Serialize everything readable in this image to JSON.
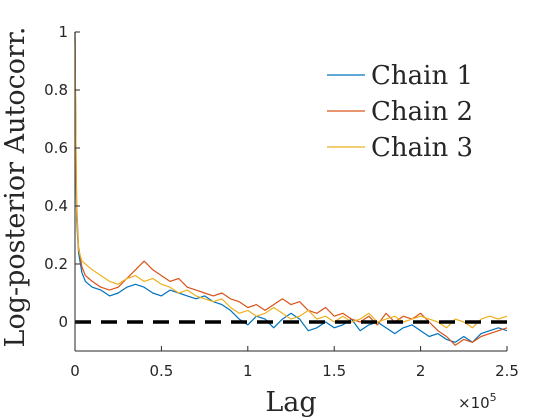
{
  "chart_data": {
    "type": "line",
    "xlabel": "Lag",
    "ylabel": "Log-posterior Autocorr.",
    "x_multiplier_label": "×10",
    "x_multiplier_exponent": "5",
    "xlim": [
      0,
      2.5
    ],
    "ylim": [
      -0.1,
      1.0
    ],
    "xticks": [
      0,
      0.5,
      1,
      1.5,
      2,
      2.5
    ],
    "xtick_labels": [
      "0",
      "0.5",
      "1",
      "1.5",
      "2",
      "2.5"
    ],
    "yticks": [
      0,
      0.2,
      0.4,
      0.6,
      0.8,
      1.0
    ],
    "ytick_labels": [
      "0",
      "0.2",
      "0.4",
      "0.6",
      "0.8",
      "1"
    ],
    "grid": false,
    "legend_position": "top-right",
    "reference_line": {
      "y": 0,
      "style": "dashed",
      "color": "#000000"
    },
    "series": [
      {
        "name": "Chain 1",
        "color": "#0072BD",
        "x": [
          0,
          0.005,
          0.01,
          0.02,
          0.04,
          0.06,
          0.08,
          0.1,
          0.15,
          0.2,
          0.25,
          0.3,
          0.35,
          0.4,
          0.45,
          0.5,
          0.55,
          0.6,
          0.65,
          0.7,
          0.75,
          0.8,
          0.85,
          0.9,
          0.95,
          1.0,
          1.05,
          1.1,
          1.15,
          1.2,
          1.25,
          1.3,
          1.35,
          1.4,
          1.45,
          1.5,
          1.55,
          1.6,
          1.65,
          1.7,
          1.75,
          1.8,
          1.85,
          1.9,
          1.95,
          2.0,
          2.05,
          2.1,
          2.15,
          2.2,
          2.25,
          2.3,
          2.35,
          2.4,
          2.45,
          2.5
        ],
        "values": [
          1.0,
          0.55,
          0.35,
          0.24,
          0.17,
          0.14,
          0.13,
          0.12,
          0.11,
          0.09,
          0.1,
          0.12,
          0.13,
          0.12,
          0.1,
          0.09,
          0.11,
          0.1,
          0.09,
          0.08,
          0.09,
          0.07,
          0.06,
          0.04,
          0.01,
          -0.01,
          0.02,
          0.01,
          -0.02,
          0.01,
          0.03,
          0.01,
          -0.03,
          -0.02,
          0.0,
          -0.02,
          -0.01,
          0.01,
          -0.03,
          -0.01,
          0.0,
          -0.02,
          -0.04,
          -0.02,
          -0.01,
          -0.03,
          -0.05,
          -0.04,
          -0.06,
          -0.07,
          -0.05,
          -0.07,
          -0.04,
          -0.03,
          -0.02,
          -0.03
        ]
      },
      {
        "name": "Chain 2",
        "color": "#D95319",
        "x": [
          0,
          0.005,
          0.01,
          0.02,
          0.04,
          0.06,
          0.08,
          0.1,
          0.15,
          0.2,
          0.25,
          0.3,
          0.35,
          0.4,
          0.45,
          0.5,
          0.55,
          0.6,
          0.65,
          0.7,
          0.75,
          0.8,
          0.85,
          0.9,
          0.95,
          1.0,
          1.05,
          1.1,
          1.15,
          1.2,
          1.25,
          1.3,
          1.35,
          1.4,
          1.45,
          1.5,
          1.55,
          1.6,
          1.65,
          1.7,
          1.75,
          1.8,
          1.85,
          1.9,
          1.95,
          2.0,
          2.05,
          2.1,
          2.15,
          2.2,
          2.25,
          2.3,
          2.35,
          2.4,
          2.45,
          2.5
        ],
        "values": [
          0.98,
          0.62,
          0.4,
          0.26,
          0.19,
          0.16,
          0.15,
          0.14,
          0.12,
          0.11,
          0.12,
          0.15,
          0.18,
          0.21,
          0.18,
          0.16,
          0.14,
          0.15,
          0.12,
          0.11,
          0.1,
          0.09,
          0.1,
          0.08,
          0.07,
          0.05,
          0.06,
          0.04,
          0.06,
          0.08,
          0.06,
          0.07,
          0.04,
          0.03,
          0.05,
          0.02,
          0.03,
          0.01,
          0.0,
          0.02,
          -0.01,
          0.03,
          0.0,
          0.02,
          0.01,
          0.03,
          0.0,
          -0.03,
          -0.05,
          -0.08,
          -0.06,
          -0.07,
          -0.05,
          -0.04,
          -0.03,
          -0.02
        ]
      },
      {
        "name": "Chain 3",
        "color": "#EDB120",
        "x": [
          0,
          0.005,
          0.01,
          0.02,
          0.04,
          0.06,
          0.08,
          0.1,
          0.15,
          0.2,
          0.25,
          0.3,
          0.35,
          0.4,
          0.45,
          0.5,
          0.55,
          0.6,
          0.65,
          0.7,
          0.75,
          0.8,
          0.85,
          0.9,
          0.95,
          1.0,
          1.05,
          1.1,
          1.15,
          1.2,
          1.25,
          1.3,
          1.35,
          1.4,
          1.45,
          1.5,
          1.55,
          1.6,
          1.65,
          1.7,
          1.75,
          1.8,
          1.85,
          1.9,
          1.95,
          2.0,
          2.05,
          2.1,
          2.15,
          2.2,
          2.25,
          2.3,
          2.35,
          2.4,
          2.45,
          2.5
        ],
        "values": [
          1.0,
          0.6,
          0.38,
          0.25,
          0.21,
          0.2,
          0.19,
          0.18,
          0.16,
          0.14,
          0.13,
          0.15,
          0.16,
          0.14,
          0.15,
          0.13,
          0.12,
          0.1,
          0.11,
          0.09,
          0.08,
          0.07,
          0.08,
          0.05,
          0.03,
          0.04,
          0.02,
          0.03,
          0.05,
          0.03,
          0.01,
          0.02,
          0.04,
          0.01,
          0.02,
          0.0,
          0.02,
          0.0,
          0.01,
          0.03,
          0.0,
          0.01,
          0.02,
          0.0,
          0.01,
          0.02,
          0.01,
          0.0,
          -0.02,
          0.01,
          0.0,
          -0.02,
          0.01,
          0.02,
          0.01,
          0.02
        ]
      }
    ]
  }
}
